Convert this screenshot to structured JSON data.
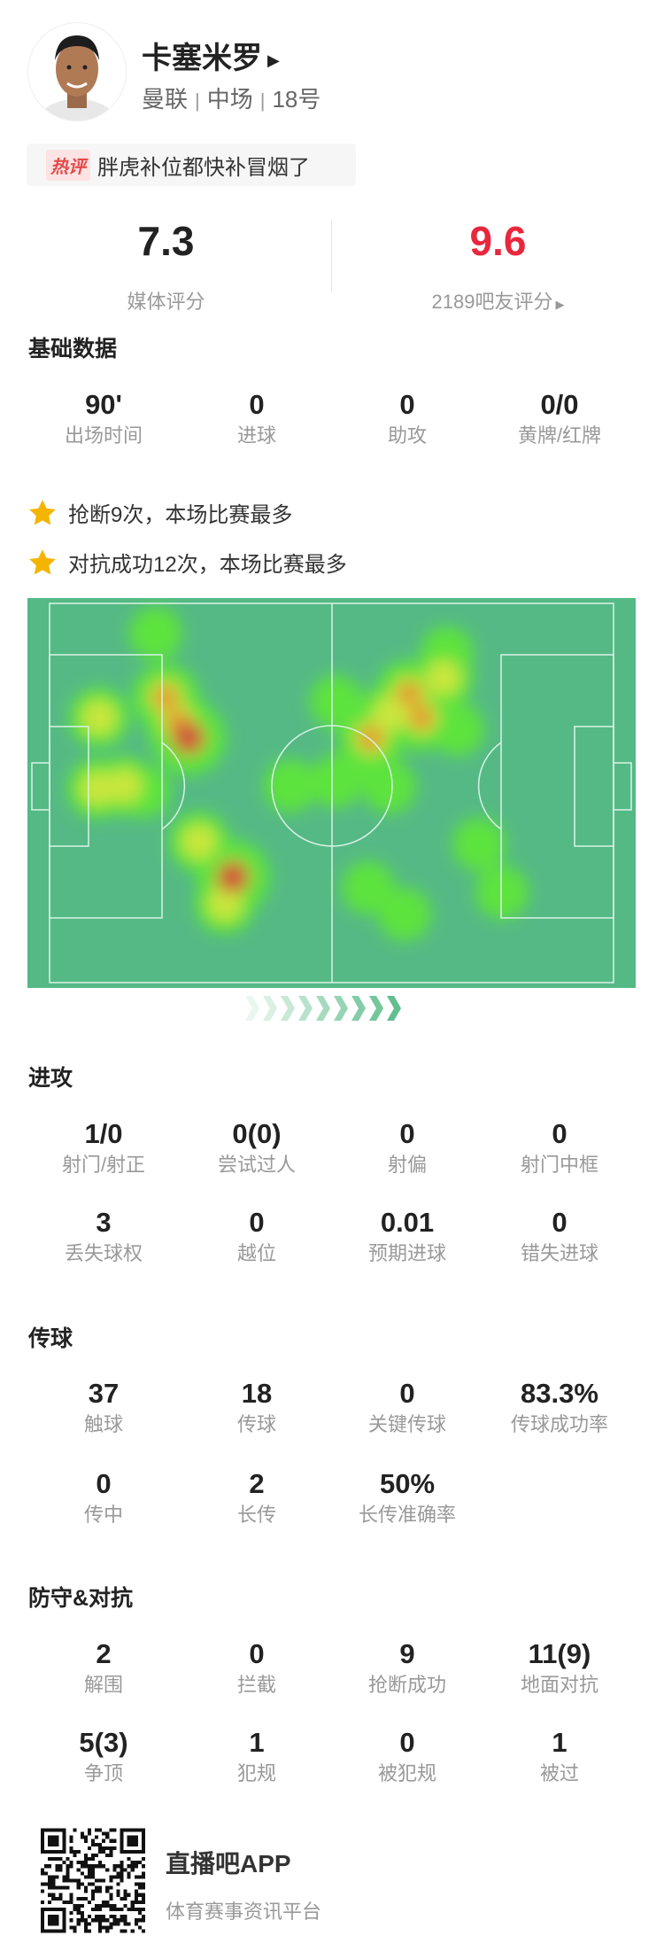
{
  "player": {
    "name": "卡塞米罗",
    "team": "曼联",
    "position": "中场",
    "number": "18号"
  },
  "hot_comment": {
    "badge": "热评",
    "text": "胖虎补位都快补冒烟了"
  },
  "ratings": {
    "media_value": "7.3",
    "media_label": "媒体评分",
    "fan_value": "9.6",
    "fan_label": "2189吧友评分",
    "fan_color": "#e8273d"
  },
  "basic": {
    "title": "基础数据",
    "stats": [
      {
        "value": "90'",
        "label": "出场时间"
      },
      {
        "value": "0",
        "label": "进球"
      },
      {
        "value": "0",
        "label": "助攻"
      },
      {
        "value": "0/0",
        "label": "黄牌/红牌"
      }
    ]
  },
  "highlights": [
    "抢断9次，本场比赛最多",
    "对抗成功12次，本场比赛最多"
  ],
  "heatmap": {
    "pitch_color": "#55b985"
  },
  "attack": {
    "title": "进攻",
    "stats": [
      {
        "value": "1/0",
        "label": "射门/射正"
      },
      {
        "value": "0(0)",
        "label": "尝试过人"
      },
      {
        "value": "0",
        "label": "射偏"
      },
      {
        "value": "0",
        "label": "射门中框"
      },
      {
        "value": "3",
        "label": "丢失球权"
      },
      {
        "value": "0",
        "label": "越位"
      },
      {
        "value": "0.01",
        "label": "预期进球"
      },
      {
        "value": "0",
        "label": "错失进球"
      }
    ]
  },
  "passing": {
    "title": "传球",
    "stats": [
      {
        "value": "37",
        "label": "触球"
      },
      {
        "value": "18",
        "label": "传球"
      },
      {
        "value": "0",
        "label": "关键传球"
      },
      {
        "value": "83.3%",
        "label": "传球成功率"
      },
      {
        "value": "0",
        "label": "传中"
      },
      {
        "value": "2",
        "label": "长传"
      },
      {
        "value": "50%",
        "label": "长传准确率"
      }
    ]
  },
  "defense": {
    "title": "防守&对抗",
    "stats": [
      {
        "value": "2",
        "label": "解围"
      },
      {
        "value": "0",
        "label": "拦截"
      },
      {
        "value": "9",
        "label": "抢断成功"
      },
      {
        "value": "11(9)",
        "label": "地面对抗"
      },
      {
        "value": "5(3)",
        "label": "争顶"
      },
      {
        "value": "1",
        "label": "犯规"
      },
      {
        "value": "0",
        "label": "被犯规"
      },
      {
        "value": "1",
        "label": "被过"
      }
    ]
  },
  "footer": {
    "app_name": "直播吧APP",
    "tagline": "体育赛事资讯平台"
  }
}
